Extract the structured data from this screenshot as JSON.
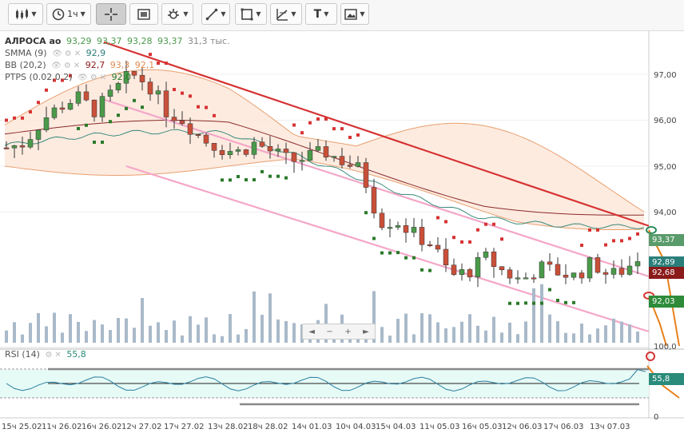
{
  "toolbar": {
    "timeframe_label": "1ч",
    "text_tool_label": "T"
  },
  "instrument": {
    "name": "АЛРОСА ао",
    "o": "93,29",
    "h": "93,37",
    "l": "93,28",
    "c": "93,37",
    "volume": "31,3 тыс."
  },
  "indicators": {
    "smma": {
      "label": "SMMA (9)",
      "value": "92,9"
    },
    "bb": {
      "label": "BB (20,2)",
      "v1": "92,7",
      "v2": "93,3",
      "v3": "92,1"
    },
    "ptps": {
      "label": "PTPS (0.02,0.2)",
      "value": "92,0"
    },
    "rsi": {
      "label": "RSI (14)",
      "value": "55,8"
    }
  },
  "price_axis": [
    "97,00",
    "96,00",
    "95,00",
    "94,00"
  ],
  "rsi_axis": [
    "100,0",
    "0"
  ],
  "price_tags": [
    {
      "text": "93,37",
      "color": "#5a9b6b"
    },
    {
      "text": "92,89",
      "color": "#2a7f7a"
    },
    {
      "text": "92,68",
      "color": "#8b1a1a"
    },
    {
      "text": "92,03",
      "color": "#2e8b3a"
    }
  ],
  "rsi_tag": {
    "text": "55,8",
    "color": "#2a8b7a"
  },
  "time_axis": [
    "15ч 25.02",
    "11ч 26.02",
    "16ч 26.02",
    "12ч 27.02",
    "17ч 27.02",
    "13ч 28.02",
    "18ч 28.02",
    "14ч 01.03",
    "10ч 04.03",
    "15ч 04.03",
    "11ч 05.03",
    "16ч 05.03",
    "12ч 06.03",
    "17ч 06.03",
    "13ч 07.03"
  ],
  "colors": {
    "up": "#4a9a4a",
    "down": "#c9503a",
    "trend_red": "#d63333",
    "channel_pink": "#f4a6c8",
    "bb_fill": "#fde6d8",
    "bb_line": "#e8a070",
    "smma": "#3a8a7a",
    "bb_mid": "#8a2a2a",
    "psar": "#2a7a2a"
  }
}
